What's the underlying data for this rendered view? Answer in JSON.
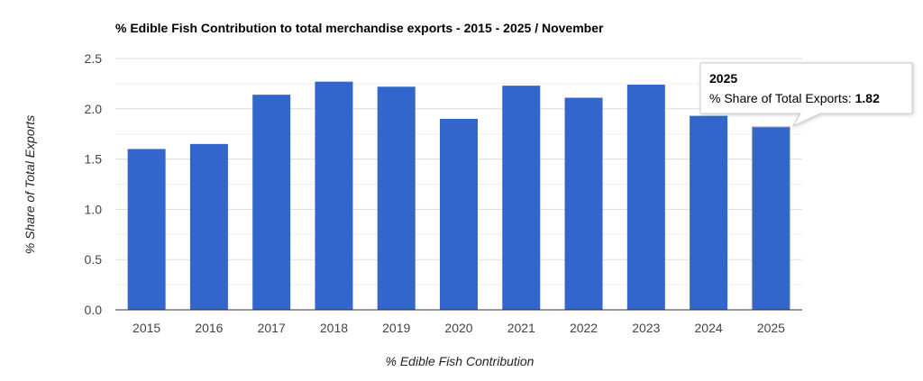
{
  "chart_data": {
    "type": "bar",
    "title": "% Edible Fish Contribution to total merchandise exports - 2015 - 2025 / November",
    "xlabel": "% Edible Fish Contribution",
    "ylabel": "% Share of Total Exports",
    "categories": [
      "2015",
      "2016",
      "2017",
      "2018",
      "2019",
      "2020",
      "2021",
      "2022",
      "2023",
      "2024",
      "2025"
    ],
    "values": [
      1.6,
      1.65,
      2.14,
      2.27,
      2.22,
      1.9,
      2.23,
      2.11,
      2.24,
      1.93,
      1.82
    ],
    "ylim": [
      0,
      2.5
    ],
    "yticks": [
      "0.0",
      "0.5",
      "1.0",
      "1.5",
      "2.0",
      "2.5"
    ],
    "grid": true,
    "bar_color": "#3366cc",
    "tooltip": {
      "title": "2025",
      "label": "% Share of Total Exports: ",
      "value": "1.82"
    }
  }
}
